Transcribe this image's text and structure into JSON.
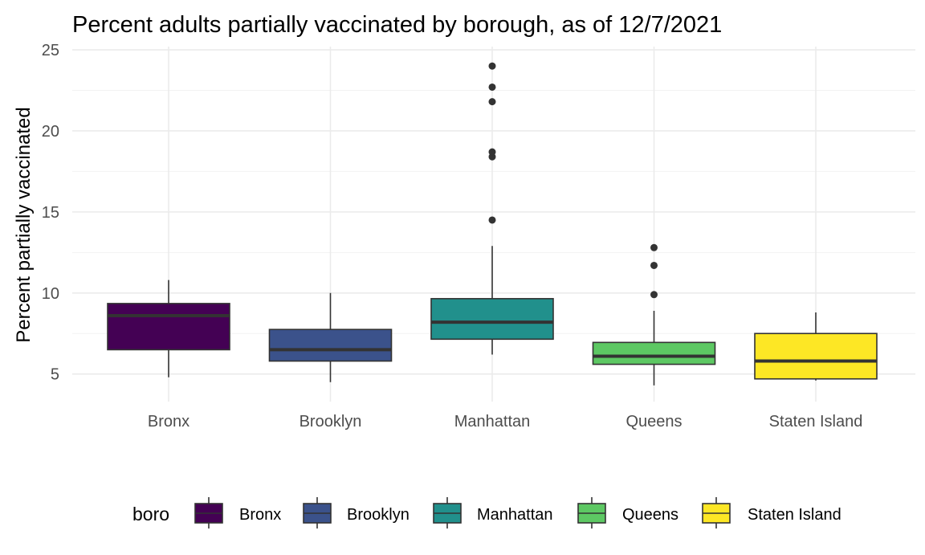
{
  "chart_data": {
    "type": "boxplot",
    "title": "Percent adults partially vaccinated by borough, as of 12/7/2021",
    "xlabel": "",
    "ylabel": "Percent partially vaccinated",
    "ylim": [
      3.3,
      25.2
    ],
    "yticks": [
      5,
      10,
      15,
      20,
      25
    ],
    "grid": true,
    "legend_title": "boro",
    "legend_position": "bottom",
    "categories": [
      "Bronx",
      "Brooklyn",
      "Manhattan",
      "Queens",
      "Staten Island"
    ],
    "series": [
      {
        "name": "Bronx",
        "color": "#440154",
        "whisker_low": 4.8,
        "q1": 6.5,
        "median": 8.6,
        "q3": 9.35,
        "whisker_high": 10.8,
        "outliers": []
      },
      {
        "name": "Brooklyn",
        "color": "#3B528B",
        "whisker_low": 4.5,
        "q1": 5.8,
        "median": 6.5,
        "q3": 7.75,
        "whisker_high": 10.0,
        "outliers": []
      },
      {
        "name": "Manhattan",
        "color": "#21908C",
        "whisker_low": 6.2,
        "q1": 7.15,
        "median": 8.2,
        "q3": 9.65,
        "whisker_high": 12.9,
        "outliers": [
          14.5,
          18.4,
          18.7,
          21.8,
          22.7,
          24.0
        ]
      },
      {
        "name": "Queens",
        "color": "#5DC863",
        "whisker_low": 4.3,
        "q1": 5.6,
        "median": 6.1,
        "q3": 6.95,
        "whisker_high": 8.9,
        "outliers": [
          9.9,
          11.7,
          12.8
        ]
      },
      {
        "name": "Staten Island",
        "color": "#FDE725",
        "whisker_low": 4.6,
        "q1": 4.7,
        "median": 5.8,
        "q3": 7.5,
        "whisker_high": 8.8,
        "outliers": []
      }
    ]
  }
}
